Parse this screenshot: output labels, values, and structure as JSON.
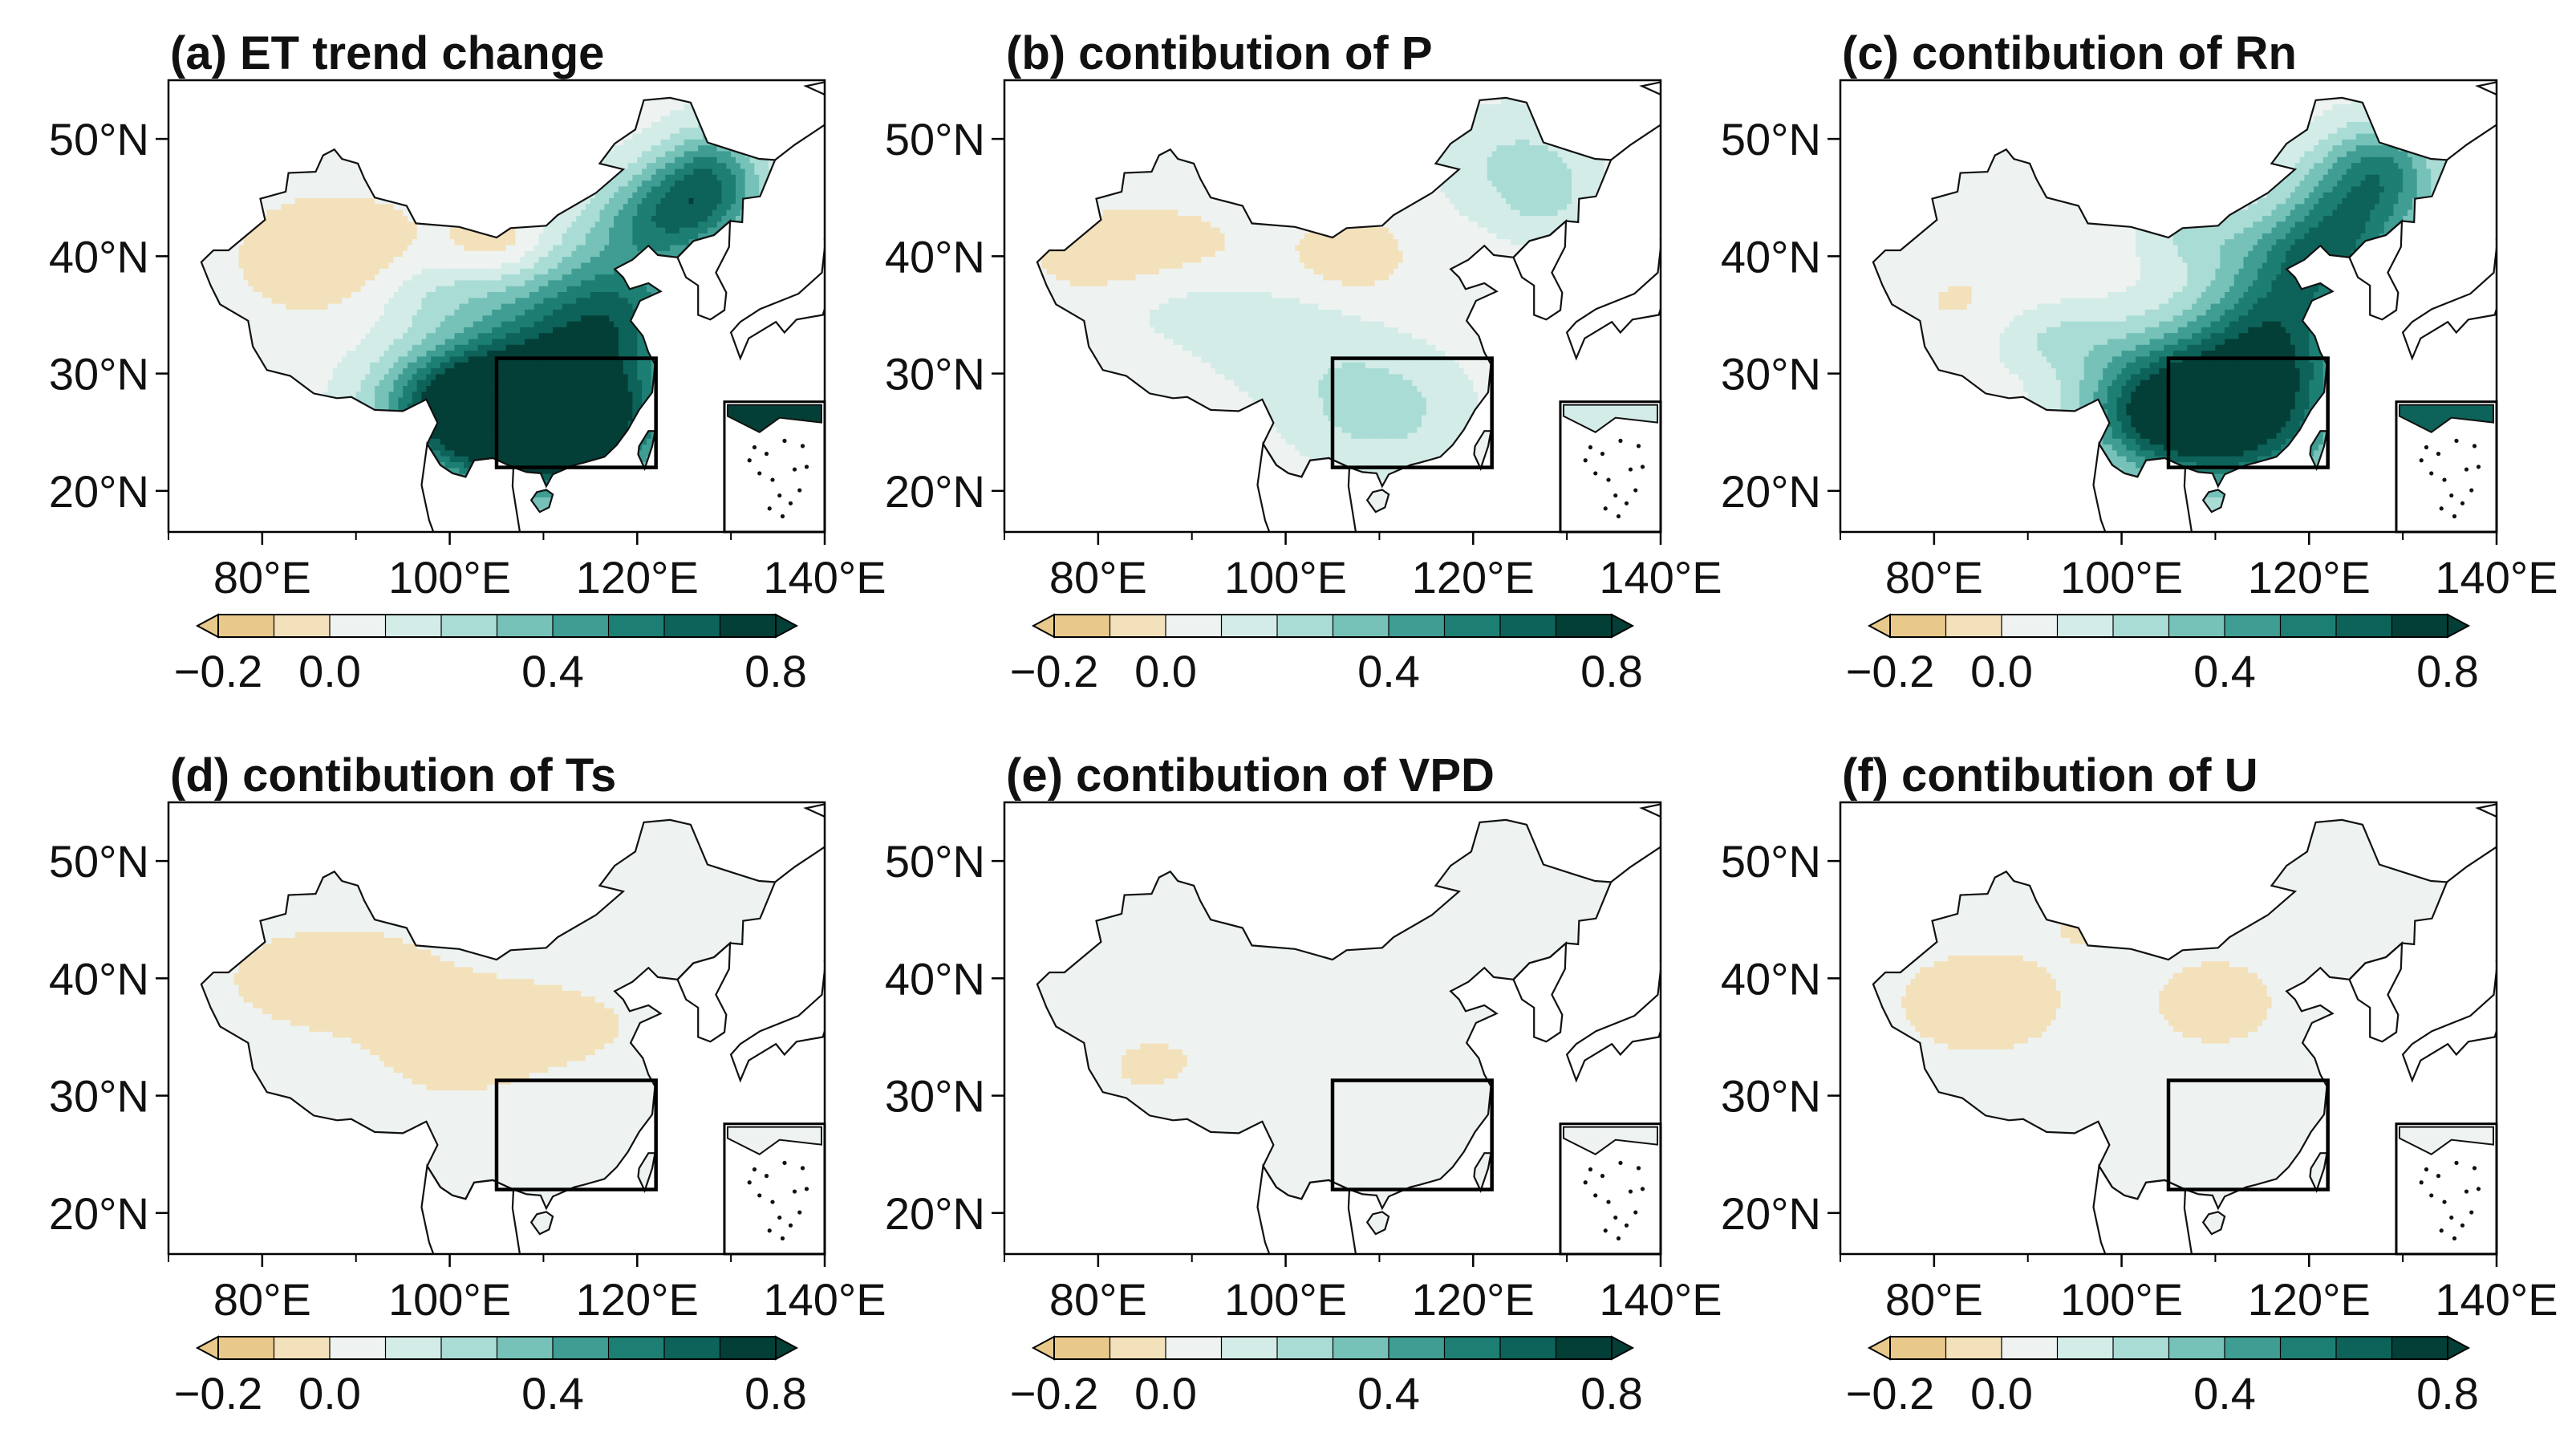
{
  "figure": {
    "panels": [
      {
        "id": "a",
        "title": "(a) ET trend change",
        "pattern": "et"
      },
      {
        "id": "b",
        "title": "(b) contibution of P",
        "pattern": "p"
      },
      {
        "id": "c",
        "title": "(c) contibution of Rn",
        "pattern": "rn"
      },
      {
        "id": "d",
        "title": "(d) contibution of Ts",
        "pattern": "ts"
      },
      {
        "id": "e",
        "title": "(e) contibution of VPD",
        "pattern": "vpd"
      },
      {
        "id": "f",
        "title": "(f) contibution of U",
        "pattern": "u"
      }
    ],
    "lat_ticks": [
      "50°N",
      "40°N",
      "30°N",
      "20°N"
    ],
    "lon_ticks": [
      "80°E",
      "100°E",
      "120°E",
      "140°E"
    ],
    "colorbar": {
      "tick_labels": [
        "−0.2",
        "0.0",
        "0.4",
        "0.8"
      ],
      "levels": [
        -0.2,
        -0.1,
        0.0,
        0.1,
        0.2,
        0.3,
        0.4,
        0.5,
        0.6,
        0.7,
        0.8
      ],
      "colors": [
        "#e8c98b",
        "#f3e1bb",
        "#eef3f1",
        "#d3ece8",
        "#a9dcd5",
        "#76c2b8",
        "#3f9d93",
        "#1d7e73",
        "#0d6259",
        "#033f37"
      ]
    }
  }
}
